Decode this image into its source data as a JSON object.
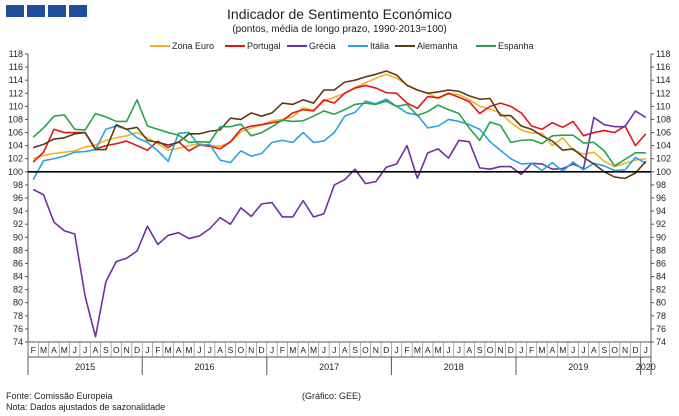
{
  "header": {
    "title": "Indicador de Sentimento Económico",
    "subtitle": "(pontos, média de longo prazo, 1990-2013=100)"
  },
  "footer": {
    "source": "Fonte: Comissão Europeia",
    "note": "Nota: Dados ajustados de sazonalidade",
    "credit": "(Gráfico:  GEE)"
  },
  "chart_data": {
    "type": "line",
    "title": "Indicador de Sentimento Económico",
    "subtitle": "(pontos, média de longo prazo, 1990-2013=100)",
    "ylim": [
      74,
      118
    ],
    "ytick_step": 2,
    "y_axis_on": "both",
    "reference_line": 100,
    "grid": false,
    "legend_position": "top",
    "month_labels": [
      "F",
      "M",
      "A",
      "M",
      "J",
      "J",
      "A",
      "S",
      "O",
      "N",
      "D",
      "J",
      "F",
      "M",
      "A",
      "M",
      "J",
      "J",
      "A",
      "S",
      "O",
      "N",
      "D",
      "J",
      "F",
      "M",
      "A",
      "M",
      "J",
      "J",
      "A",
      "S",
      "O",
      "N",
      "D",
      "J",
      "F",
      "M",
      "A",
      "M",
      "J",
      "J",
      "A",
      "S",
      "O",
      "N",
      "D",
      "J",
      "F",
      "M",
      "A",
      "M",
      "J",
      "J",
      "A",
      "S",
      "O",
      "N",
      "D",
      "J"
    ],
    "year_labels": [
      {
        "label": "2015",
        "start": 0,
        "end": 10
      },
      {
        "label": "2016",
        "start": 11,
        "end": 22
      },
      {
        "label": "2017",
        "start": 23,
        "end": 34
      },
      {
        "label": "2018",
        "start": 35,
        "end": 46
      },
      {
        "label": "2019",
        "start": 47,
        "end": 58
      },
      {
        "label": "2020",
        "start": 59,
        "end": 59
      }
    ],
    "series": [
      {
        "name": "Zona Euro",
        "color": "#f0b323",
        "values": [
          102.0,
          102.5,
          102.8,
          103.0,
          103.2,
          103.8,
          104.1,
          104.8,
          105.2,
          105.5,
          106.0,
          105.2,
          104.3,
          103.3,
          103.6,
          104.0,
          104.3,
          104.0,
          103.9,
          104.5,
          106.1,
          106.7,
          107.2,
          107.8,
          108.0,
          108.4,
          109.8,
          109.4,
          110.8,
          111.4,
          112.0,
          112.9,
          113.6,
          114.3,
          114.9,
          114.3,
          113.3,
          112.5,
          112.0,
          111.2,
          111.9,
          111.8,
          111.0,
          110.0,
          109.6,
          109.0,
          107.5,
          106.4,
          105.9,
          105.9,
          104.0,
          105.2,
          103.3,
          102.7,
          103.0,
          101.6,
          100.8,
          101.3,
          101.8,
          102.0
        ]
      },
      {
        "name": "Portugal",
        "color": "#e3171b",
        "values": [
          101.5,
          103.0,
          106.5,
          106.0,
          106.0,
          106.0,
          103.5,
          104.0,
          104.3,
          104.7,
          104.0,
          103.3,
          104.7,
          103.7,
          104.6,
          103.2,
          104.1,
          103.9,
          103.5,
          104.6,
          106.5,
          107.0,
          107.2,
          107.5,
          107.8,
          109.0,
          109.5,
          109.3,
          111.0,
          110.5,
          112.0,
          112.8,
          113.2,
          112.8,
          112.1,
          112.0,
          110.5,
          109.7,
          111.5,
          111.3,
          112.0,
          111.4,
          110.7,
          108.9,
          110.0,
          110.5,
          110.0,
          109.0,
          107.0,
          106.5,
          107.5,
          106.8,
          107.7,
          105.5,
          106.0,
          106.3,
          106.0,
          107.0,
          104.0,
          105.8
        ]
      },
      {
        "name": "Grécia",
        "color": "#7030a0",
        "values": [
          97.3,
          96.5,
          92.3,
          91.0,
          90.5,
          81.0,
          74.8,
          83.2,
          86.3,
          86.8,
          87.9,
          91.7,
          88.9,
          90.3,
          90.7,
          89.8,
          90.2,
          91.3,
          93.0,
          92.0,
          94.5,
          93.2,
          95.1,
          95.3,
          93.1,
          93.1,
          95.6,
          93.1,
          93.6,
          98.0,
          98.8,
          100.4,
          98.2,
          98.5,
          100.7,
          101.2,
          104.0,
          99.0,
          102.9,
          103.5,
          102.1,
          104.8,
          104.6,
          100.6,
          100.4,
          100.8,
          100.8,
          99.6,
          101.3,
          101.2,
          100.4,
          100.5,
          101.2,
          100.5,
          108.3,
          107.2,
          106.9,
          106.9,
          109.3,
          108.3
        ]
      },
      {
        "name": "Itália",
        "color": "#29a3e0",
        "values": [
          98.8,
          101.7,
          102.0,
          102.4,
          103.0,
          103.1,
          103.4,
          106.5,
          107.0,
          106.5,
          105.2,
          104.5,
          103.2,
          101.6,
          105.9,
          106.0,
          104.0,
          104.2,
          101.8,
          101.4,
          103.2,
          102.4,
          102.8,
          104.5,
          104.8,
          104.5,
          106.0,
          104.5,
          104.7,
          106.0,
          108.5,
          109.1,
          110.8,
          110.4,
          111.1,
          110.0,
          109.0,
          108.7,
          106.7,
          107.0,
          108.0,
          107.7,
          107.2,
          106.5,
          104.6,
          103.3,
          102.0,
          101.2,
          101.3,
          100.2,
          101.4,
          100.1,
          101.5,
          100.3,
          101.3,
          100.9,
          100.2,
          100.3,
          102.2,
          101.3
        ]
      },
      {
        "name": "Alemanha",
        "color": "#5e3a12",
        "values": [
          103.7,
          104.2,
          105.0,
          105.2,
          105.8,
          106.0,
          103.4,
          103.4,
          107.2,
          106.5,
          106.8,
          104.8,
          104.5,
          104.1,
          104.5,
          105.8,
          105.8,
          106.2,
          106.4,
          108.2,
          108.0,
          109.0,
          108.5,
          109.0,
          110.5,
          110.3,
          111.0,
          110.5,
          112.5,
          112.5,
          113.7,
          114.0,
          114.5,
          114.9,
          115.4,
          114.8,
          113.2,
          112.5,
          112.0,
          112.2,
          112.5,
          112.3,
          111.6,
          111.1,
          111.2,
          108.6,
          108.6,
          107.0,
          106.5,
          105.5,
          104.7,
          103.3,
          103.5,
          102.2,
          101.2,
          100.0,
          99.2,
          99.0,
          99.8,
          101.6
        ]
      },
      {
        "name": "Espanha",
        "color": "#27a34e",
        "values": [
          105.3,
          106.7,
          108.5,
          108.7,
          106.5,
          106.4,
          108.9,
          108.4,
          107.7,
          107.7,
          111.0,
          107.0,
          106.5,
          106.0,
          105.6,
          104.5,
          104.6,
          104.5,
          106.9,
          106.9,
          107.3,
          105.5,
          106.0,
          106.9,
          107.9,
          107.7,
          107.8,
          108.5,
          109.3,
          108.8,
          109.5,
          110.3,
          110.5,
          110.3,
          110.8,
          110.0,
          110.3,
          108.6,
          109.2,
          110.2,
          109.5,
          108.9,
          106.7,
          104.8,
          107.6,
          107.1,
          104.5,
          104.8,
          104.9,
          104.3,
          105.5,
          105.6,
          105.6,
          104.4,
          104.5,
          103.2,
          100.9,
          101.9,
          102.9,
          102.9
        ]
      }
    ]
  }
}
